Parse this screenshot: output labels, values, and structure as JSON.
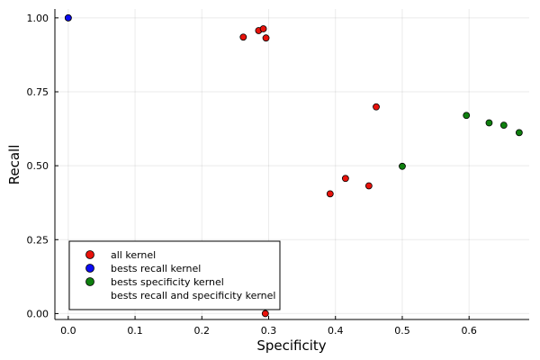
{
  "chart_data": {
    "type": "scatter",
    "title": "",
    "xlabel": "Specificity",
    "ylabel": "Recall",
    "xlim": [
      -0.02,
      0.69
    ],
    "ylim": [
      -0.02,
      1.03
    ],
    "xticks": [
      0.0,
      0.1,
      0.2,
      0.3,
      0.4,
      0.5,
      0.6
    ],
    "xtick_labels": [
      "0.0",
      "0.1",
      "0.2",
      "0.3",
      "0.4",
      "0.5",
      "0.6"
    ],
    "yticks": [
      0.0,
      0.25,
      0.5,
      0.75,
      1.0
    ],
    "ytick_labels": [
      "0.00",
      "0.25",
      "0.50",
      "0.75",
      "1.00"
    ],
    "grid": true,
    "legend_position": "bottom-left",
    "series": [
      {
        "name": "all kernel",
        "color": "#e8120b",
        "x": [
          0.0,
          0.262,
          0.285,
          0.292,
          0.296,
          0.461,
          0.415,
          0.392,
          0.45,
          0.295
        ],
        "y": [
          1.0,
          0.935,
          0.957,
          0.963,
          0.932,
          0.699,
          0.457,
          0.405,
          0.432,
          0.0
        ]
      },
      {
        "name": "bests recall kernel",
        "color": "#0b0bf2",
        "x": [
          0.0
        ],
        "y": [
          1.0
        ]
      },
      {
        "name": "bests specificity kernel",
        "color": "#0e7f0e",
        "x": [
          0.5,
          0.596,
          0.63,
          0.652,
          0.675
        ],
        "y": [
          0.498,
          0.67,
          0.645,
          0.637,
          0.612
        ]
      },
      {
        "name": "bests recall and specificity kernel",
        "color": "none",
        "x": [],
        "y": []
      }
    ]
  }
}
